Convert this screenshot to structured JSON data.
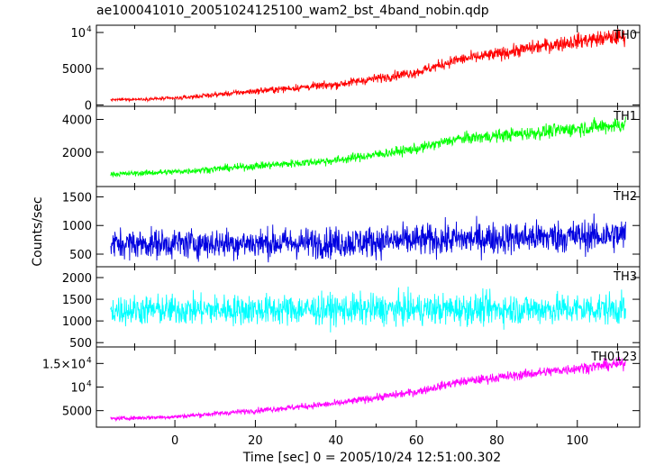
{
  "title": "ae100041010_20051024125100_wam2_bst_4band_nobin.qdp",
  "xlabel": "Time [sec] 0 = 2005/10/24 12:51:00.302",
  "ylabel": "Counts/sec",
  "chart_data": {
    "type": "line",
    "title": "ae100041010_20051024125100_wam2_bst_4band_nobin.qdp",
    "xlabel": "Time [sec] 0 = 2005/10/24 12:51:00.302",
    "ylabel": "Counts/sec",
    "xlim": [
      -19.5,
      115.5
    ],
    "x_ticks": [
      0,
      20,
      40,
      60,
      80,
      100
    ],
    "x_tick_labels": [
      "0",
      "20",
      "40",
      "60",
      "80",
      "100"
    ],
    "x_start": -16,
    "x_end": 112,
    "panels": [
      {
        "name": "TH0",
        "color": "#ff0000",
        "ylim": [
          -200,
          11000
        ],
        "y_ticks": [
          0,
          5000,
          10000
        ],
        "y_tick_labels": [
          {
            "base": "0",
            "exp": ""
          },
          {
            "base": "5000",
            "exp": ""
          },
          {
            "base": "10",
            "exp": "4"
          }
        ],
        "trend": [
          [
            -16,
            700
          ],
          [
            0,
            900
          ],
          [
            20,
            1900
          ],
          [
            40,
            2800
          ],
          [
            60,
            4500
          ],
          [
            70,
            6200
          ],
          [
            80,
            7000
          ],
          [
            90,
            8000
          ],
          [
            100,
            8800
          ],
          [
            112,
            9500
          ]
        ],
        "noise": [
          [
            -16,
            200
          ],
          [
            60,
            900
          ],
          [
            112,
            1500
          ]
        ],
        "max_line": 1
      },
      {
        "name": "TH1",
        "color": "#00ff00",
        "ylim": [
          -100,
          4800
        ],
        "y_ticks": [
          2000,
          4000
        ],
        "y_tick_labels": [
          {
            "base": "2000",
            "exp": ""
          },
          {
            "base": "4000",
            "exp": ""
          }
        ],
        "trend": [
          [
            -16,
            650
          ],
          [
            0,
            800
          ],
          [
            20,
            1150
          ],
          [
            40,
            1500
          ],
          [
            60,
            2200
          ],
          [
            70,
            2800
          ],
          [
            80,
            3000
          ],
          [
            90,
            3200
          ],
          [
            100,
            3450
          ],
          [
            112,
            3700
          ]
        ],
        "noise": [
          [
            -16,
            200
          ],
          [
            60,
            400
          ],
          [
            112,
            650
          ]
        ],
        "max_line": 1
      },
      {
        "name": "TH2",
        "color": "#0000e0",
        "ylim": [
          280,
          1680
        ],
        "y_ticks": [
          500,
          1000,
          1500
        ],
        "y_tick_labels": [
          {
            "base": "500",
            "exp": ""
          },
          {
            "base": "1000",
            "exp": ""
          },
          {
            "base": "1500",
            "exp": ""
          }
        ],
        "trend": [
          [
            -16,
            680
          ],
          [
            40,
            700
          ],
          [
            80,
            780
          ],
          [
            112,
            830
          ]
        ],
        "noise": [
          [
            -16,
            330
          ],
          [
            112,
            380
          ]
        ],
        "max_line": 1
      },
      {
        "name": "TH3",
        "color": "#00ffff",
        "ylim": [
          400,
          2250
        ],
        "y_ticks": [
          500,
          1000,
          1500,
          2000
        ],
        "y_tick_labels": [
          {
            "base": "500",
            "exp": ""
          },
          {
            "base": "1000",
            "exp": ""
          },
          {
            "base": "1500",
            "exp": ""
          },
          {
            "base": "2000",
            "exp": ""
          }
        ],
        "trend": [
          [
            -16,
            1250
          ],
          [
            112,
            1280
          ]
        ],
        "noise": [
          [
            -16,
            450
          ],
          [
            112,
            470
          ]
        ],
        "max_line": 1
      },
      {
        "name": "TH0123",
        "color": "#ff00ff",
        "ylim": [
          1500,
          18500
        ],
        "y_ticks": [
          5000,
          10000,
          15000
        ],
        "y_tick_labels": [
          {
            "base": "5000",
            "exp": ""
          },
          {
            "base": "10",
            "exp": "4"
          },
          {
            "base": "1.5×10",
            "exp": "4"
          }
        ],
        "trend": [
          [
            -16,
            3300
          ],
          [
            0,
            3700
          ],
          [
            20,
            5000
          ],
          [
            40,
            6500
          ],
          [
            60,
            9000
          ],
          [
            70,
            11000
          ],
          [
            80,
            12000
          ],
          [
            90,
            13000
          ],
          [
            100,
            14000
          ],
          [
            112,
            15000
          ]
        ],
        "noise": [
          [
            -16,
            500
          ],
          [
            60,
            1100
          ],
          [
            112,
            1600
          ]
        ],
        "max_line": 1
      }
    ]
  }
}
